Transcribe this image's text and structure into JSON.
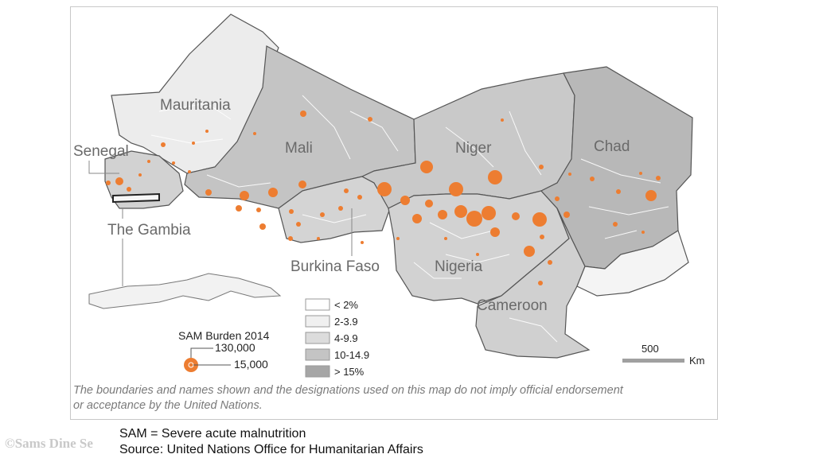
{
  "map": {
    "countries": [
      "Mauritania",
      "Senegal",
      "The Gambia",
      "Mali",
      "Burkina Faso",
      "Niger",
      "Nigeria",
      "Chad",
      "Cameroon"
    ],
    "legend": {
      "title": "SAM Burden 2014",
      "bubble_sizes": [
        "130,000",
        "15,000"
      ],
      "classes": [
        {
          "label": "< 2%",
          "color": "#ffffff"
        },
        {
          "label": "2-3.9",
          "color": "#f0f0f0"
        },
        {
          "label": "4-9.9",
          "color": "#dcdcdc"
        },
        {
          "label": "10-14.9",
          "color": "#c4c4c4"
        },
        {
          "label": "> 15%",
          "color": "#a6a6a6"
        }
      ]
    },
    "scale": {
      "value": "500",
      "unit": "Km"
    },
    "bubble_color": "#ed7d31",
    "disclaimer": [
      "The boundaries and names shown and the designations used on this map do not imply official endorsement",
      "or acceptance by the United Nations."
    ]
  },
  "footer": {
    "line1": "SAM = Severe acute malnutrition",
    "line2": "Source: United Nations Office for Humanitarian Affairs",
    "watermark": "©Sams Dine Se"
  }
}
